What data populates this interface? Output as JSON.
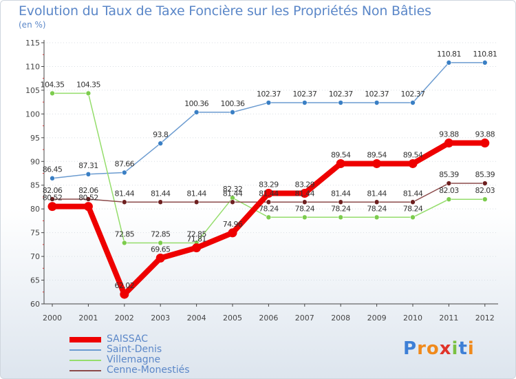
{
  "title": "Evolution du Taux de Taxe Foncière sur les Propriétés Non Bâties",
  "subtitle": "(en %)",
  "logo": "Proxiti",
  "colors": {
    "text": "#5b87c8",
    "axis": "#444444",
    "grid": "#d8dde3"
  },
  "chart_data": {
    "type": "line",
    "title": "Evolution du Taux de Taxe Foncière sur les Propriétés Non Bâties",
    "ylabel": "(en %)",
    "xlabel": "",
    "ylim": [
      60,
      115
    ],
    "yticks": [
      60,
      65,
      70,
      75,
      80,
      85,
      90,
      95,
      100,
      105,
      110,
      115
    ],
    "categories": [
      "2000",
      "2001",
      "2002",
      "2003",
      "2004",
      "2005",
      "2006",
      "2007",
      "2008",
      "2009",
      "2010",
      "2011",
      "2012"
    ],
    "series": [
      {
        "name": "Saint-Denis",
        "color": "#6b9bd0",
        "marker": "#3a7fc4",
        "width": 1.5,
        "markerSize": 3.5,
        "values": [
          86.45,
          87.31,
          87.66,
          93.8,
          100.36,
          100.36,
          102.37,
          102.37,
          102.37,
          102.37,
          102.37,
          110.81,
          110.81
        ],
        "labels": [
          "86.45",
          "87.31",
          "87.66",
          "93.8",
          "100.36",
          "100.36",
          "102.37",
          "102.37",
          "102.37",
          "102.37",
          "102.37",
          "110.81",
          "110.81"
        ]
      },
      {
        "name": "Villemagne",
        "color": "#94dd6b",
        "marker": "#7ccc4d",
        "width": 1.5,
        "markerSize": 3.5,
        "values": [
          104.35,
          104.35,
          72.85,
          72.85,
          72.85,
          82.32,
          78.24,
          78.24,
          78.24,
          78.24,
          78.24,
          82.03,
          82.03
        ],
        "labels": [
          "104.35",
          "104.35",
          "72.85",
          "72.85",
          "72.85",
          "82.32",
          "78.24",
          "78.24",
          "78.24",
          "78.24",
          "78.24",
          "82.03",
          "82.03"
        ]
      },
      {
        "name": "Cenne-Monestiés",
        "color": "#8b4a4a",
        "marker": "#6e2020",
        "width": 1.5,
        "markerSize": 3.5,
        "values": [
          82.06,
          82.06,
          81.44,
          81.44,
          81.44,
          81.44,
          81.44,
          81.44,
          81.44,
          81.44,
          81.44,
          85.39,
          85.39
        ],
        "labels": [
          "82.06",
          "82.06",
          "81.44",
          "81.44",
          "81.44",
          "81.44",
          "81.44",
          "81.44",
          "81.44",
          "81.44",
          "81.44",
          "85.39",
          "85.39"
        ]
      },
      {
        "name": "SAISSAC",
        "color": "#ee0000",
        "marker": "#ee0000",
        "width": 8,
        "markerSize": 6.5,
        "values": [
          80.52,
          80.52,
          62.02,
          69.65,
          71.81,
          74.96,
          83.29,
          83.29,
          89.54,
          89.54,
          89.54,
          93.88,
          93.88
        ],
        "labels": [
          "80.52",
          "80.52",
          "62.02",
          "69.65",
          "71.81",
          "74.96",
          "83.29",
          "83.29",
          "89.54",
          "89.54",
          "89.54",
          "93.88",
          "93.88"
        ]
      }
    ],
    "legend": [
      "SAISSAC",
      "Saint-Denis",
      "Villemagne",
      "Cenne-Monestiés"
    ]
  }
}
